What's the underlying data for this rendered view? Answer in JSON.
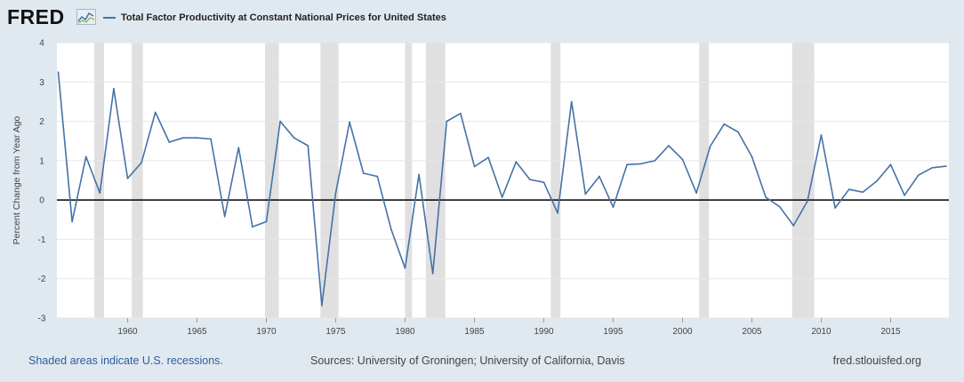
{
  "header": {
    "logo": "FRED",
    "logo_icon": "chart-line-icon",
    "legend_label": "Total Factor Productivity at Constant National Prices for United States"
  },
  "footer": {
    "recession_note": "Shaded areas indicate U.S. recessions.",
    "sources": "Sources: University of Groningen; University of California, Davis",
    "site": "fred.stlouisfed.org"
  },
  "colors": {
    "series": "#4572a7",
    "recession": "#e0e0e0",
    "background": "#e1e9f0",
    "plot": "#ffffff",
    "zero_line": "#000000"
  },
  "chart_data": {
    "type": "line",
    "xlabel": "",
    "ylabel": "Percent Change from Year Ago",
    "xlim": [
      1955,
      2019
    ],
    "ylim": [
      -3,
      4
    ],
    "x_ticks": [
      1960,
      1965,
      1970,
      1975,
      1980,
      1985,
      1990,
      1995,
      2000,
      2005,
      2010,
      2015
    ],
    "y_ticks": [
      -3,
      -2,
      -1,
      0,
      1,
      2,
      3,
      4
    ],
    "grid": true,
    "legend_position": "top-left",
    "recessions": [
      [
        1957.6,
        1958.3
      ],
      [
        1960.3,
        1961.1
      ],
      [
        1969.9,
        1970.9
      ],
      [
        1973.9,
        1975.2
      ],
      [
        1980.0,
        1980.5
      ],
      [
        1981.5,
        1982.9
      ],
      [
        1990.5,
        1991.2
      ],
      [
        2001.2,
        2001.9
      ],
      [
        2007.9,
        2009.5
      ]
    ],
    "series": [
      {
        "x": [
          1955,
          1956,
          1957,
          1958,
          1959,
          1960,
          1961,
          1962,
          1963,
          1964,
          1965,
          1966,
          1967,
          1968,
          1969,
          1970,
          1971,
          1972,
          1973,
          1974,
          1975,
          1976,
          1977,
          1978,
          1979,
          1980,
          1981,
          1982,
          1983,
          1984,
          1985,
          1986,
          1987,
          1988,
          1989,
          1990,
          1991,
          1992,
          1993,
          1994,
          1995,
          1996,
          1997,
          1998,
          1999,
          2000,
          2001,
          2002,
          2003,
          2004,
          2005,
          2006,
          2007,
          2008,
          2009,
          2010,
          2011,
          2012,
          2013,
          2014,
          2015,
          2016,
          2017,
          2018,
          2019
        ],
        "values": [
          3.25,
          -0.55,
          1.1,
          0.18,
          2.83,
          0.55,
          0.95,
          2.23,
          1.47,
          1.58,
          1.58,
          1.55,
          -0.42,
          1.33,
          -0.68,
          -0.55,
          2.0,
          1.58,
          1.38,
          -2.68,
          0.18,
          1.98,
          0.68,
          0.6,
          -0.75,
          -1.73,
          0.65,
          -1.87,
          2.0,
          2.2,
          0.85,
          1.08,
          0.07,
          0.97,
          0.52,
          0.45,
          -0.33,
          2.5,
          0.15,
          0.6,
          -0.18,
          0.9,
          0.92,
          1.0,
          1.38,
          1.03,
          0.18,
          1.37,
          1.93,
          1.73,
          1.1,
          0.07,
          -0.17,
          -0.65,
          -0.03,
          1.65,
          -0.2,
          0.27,
          0.2,
          0.48,
          0.9,
          0.12,
          0.63,
          0.82,
          0.86
        ]
      }
    ]
  }
}
